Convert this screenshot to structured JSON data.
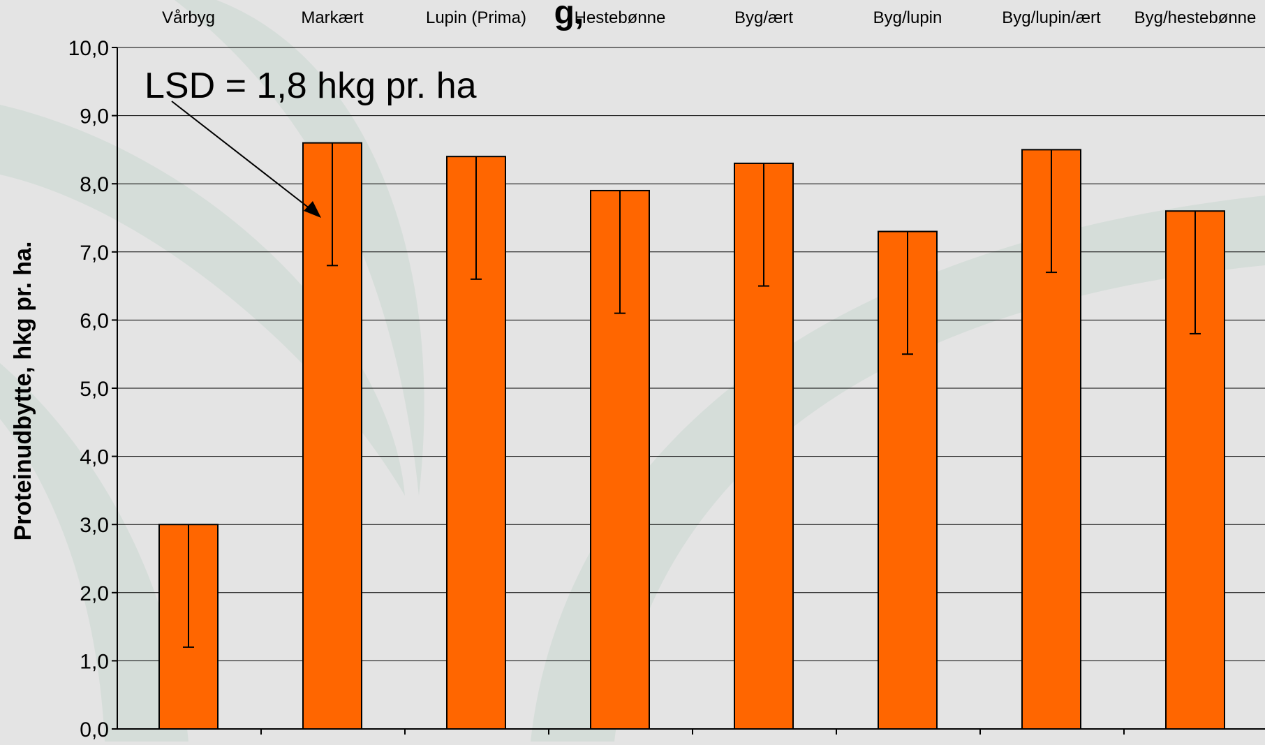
{
  "title_fragment": "g,",
  "ylabel": "Proteinudbytte, hkg pr.   ha.",
  "annotation": {
    "text": "LSD = 1,8 hkg pr. ha"
  },
  "colors": {
    "background": "#e4e4e4",
    "watermark": "#d5ddd9",
    "bar": "#ff6600",
    "bar_outline": "#000000",
    "grid": "#000000",
    "text": "#000000"
  },
  "chart_data": {
    "type": "bar",
    "categories": [
      "Vårbyg",
      "Markært",
      "Lupin (Prima)",
      "Hestebønne",
      "Byg/ært",
      "Byg/lupin",
      "Byg/lupin/ært",
      "Byg/hestebønne"
    ],
    "values": [
      3.0,
      8.6,
      8.4,
      7.9,
      8.3,
      7.3,
      8.5,
      7.6
    ],
    "error_lower": [
      1.2,
      6.8,
      6.6,
      6.1,
      6.5,
      5.5,
      6.7,
      5.8
    ],
    "ylabel": "Proteinudbytte, hkg pr.   ha.",
    "ylim": [
      0,
      10
    ],
    "yticks": [
      "0,0",
      "1,0",
      "2,0",
      "3,0",
      "4,0",
      "5,0",
      "6,0",
      "7,0",
      "8,0",
      "9,0",
      "10,0"
    ],
    "category_labels_position": "top",
    "grid": true,
    "legend": "none"
  }
}
